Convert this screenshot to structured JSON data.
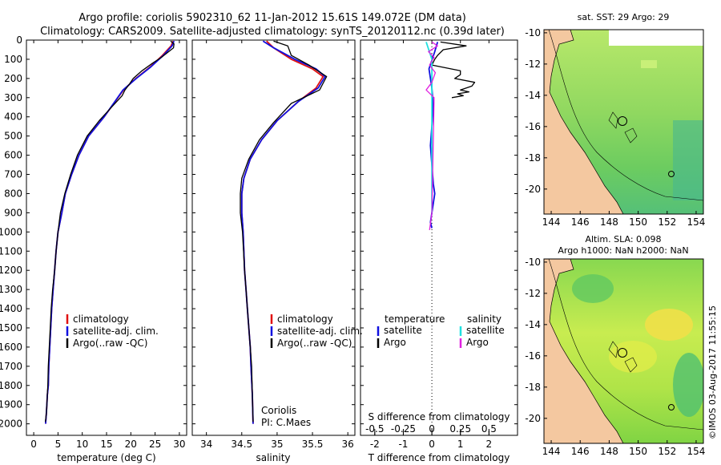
{
  "header": {
    "title_line1": "Argo profile: coriolis 5902310_62 11-Jan-2012 15.61S 149.072E (DM data)",
    "title_line2": "Climatology: CARS2009. Satellite-adjusted climatology: synTS_20120112.nc (0.39d later)"
  },
  "colors": {
    "climatology": "#e01010",
    "satellite": "#1010e0",
    "argo": "#000000",
    "argo_salinity": "#e020e0",
    "satellite_salinity": "#20e0e0",
    "land": "#f4c8a0"
  },
  "legend": {
    "climatology": "climatology",
    "satellite_adj": "satellite-adj. clim.",
    "argo_raw": "Argo(..raw -QC)",
    "temperature": "temperature",
    "salinity": "salinity",
    "satellite": "satellite",
    "argo": "Argo"
  },
  "annotations": {
    "institution": "Coriolis",
    "pi": "PI: C.Maes",
    "watermark": "©IMOS 03-Aug-2017 11:55:15"
  },
  "chart_data": [
    {
      "type": "line",
      "id": "temperature",
      "title": "",
      "xlabel": "temperature (deg C)",
      "ylabel": "",
      "xlim": [
        -1.5,
        31.5
      ],
      "ylim": [
        2060,
        0
      ],
      "xticks": [
        0,
        5,
        10,
        15,
        20,
        25,
        30
      ],
      "yticks": [
        0,
        100,
        200,
        300,
        400,
        500,
        600,
        700,
        800,
        900,
        1000,
        1100,
        1200,
        1300,
        1400,
        1500,
        1600,
        1700,
        1800,
        1900,
        2000
      ],
      "series": [
        {
          "name": "climatology",
          "x": [
            28.7,
            28.3,
            26.5,
            24.0,
            21.0,
            18.5,
            14.5,
            11.3,
            9.3,
            7.8,
            6.5,
            5.8,
            5.0,
            4.6,
            4.3,
            4.0,
            3.7,
            3.5,
            3.3,
            3.1,
            3.0,
            2.8,
            2.7,
            2.6,
            2.45
          ],
          "y": [
            5,
            30,
            80,
            140,
            200,
            260,
            400,
            500,
            600,
            700,
            800,
            900,
            1000,
            1100,
            1200,
            1300,
            1400,
            1500,
            1600,
            1700,
            1800,
            1850,
            1900,
            1950,
            2000
          ]
        },
        {
          "name": "satellite-adj. clim.",
          "x": [
            28.9,
            28.5,
            26.7,
            24.1,
            21.1,
            18.4,
            14.5,
            11.3,
            9.3,
            7.8,
            6.5,
            5.8,
            5.0,
            4.6,
            4.3,
            4.0,
            3.7,
            3.5,
            3.3,
            3.1,
            3.0,
            2.8,
            2.7,
            2.6,
            2.45
          ],
          "y": [
            5,
            30,
            80,
            140,
            200,
            260,
            400,
            500,
            600,
            700,
            800,
            900,
            1000,
            1100,
            1200,
            1300,
            1400,
            1500,
            1600,
            1700,
            1800,
            1850,
            1900,
            1950,
            2000
          ]
        },
        {
          "name": "Argo(..raw -QC)",
          "x": [
            28.2,
            28.9,
            28.8,
            27.8,
            26.3,
            24.5,
            22.3,
            20.5,
            19.7,
            18.8,
            18.2,
            16.0,
            13.5,
            11.0,
            9.0,
            7.6,
            6.4,
            5.5,
            5.0,
            4.6,
            4.3,
            3.9,
            3.6,
            3.4,
            3.2,
            3.0,
            2.9,
            2.7,
            2.6,
            2.4
          ],
          "y": [
            5,
            20,
            40,
            60,
            90,
            120,
            160,
            200,
            230,
            260,
            290,
            350,
            420,
            500,
            600,
            700,
            800,
            900,
            1000,
            1100,
            1200,
            1300,
            1400,
            1500,
            1600,
            1700,
            1800,
            1900,
            1950,
            1990
          ]
        }
      ]
    },
    {
      "type": "line",
      "id": "salinity",
      "title": "",
      "xlabel": "salinity",
      "ylabel": "",
      "xlim": [
        33.8,
        36.1
      ],
      "ylim": [
        2060,
        0
      ],
      "xticks": [
        34,
        34.5,
        35,
        35.5,
        36
      ],
      "series": [
        {
          "name": "climatology",
          "x": [
            34.85,
            34.95,
            35.2,
            35.5,
            35.65,
            35.55,
            35.3,
            35.0,
            34.78,
            34.62,
            34.53,
            34.5,
            34.5,
            34.52,
            34.54,
            34.56,
            34.58,
            34.6,
            34.62,
            34.63,
            34.65,
            34.66
          ],
          "y": [
            5,
            40,
            100,
            150,
            190,
            250,
            320,
            420,
            520,
            620,
            720,
            800,
            900,
            1000,
            1200,
            1300,
            1400,
            1500,
            1600,
            1700,
            1850,
            2000
          ]
        },
        {
          "name": "satellite-adj. clim.",
          "x": [
            34.8,
            34.95,
            35.25,
            35.55,
            35.68,
            35.58,
            35.3,
            35.0,
            34.78,
            34.62,
            34.53,
            34.5,
            34.5,
            34.52,
            34.54,
            34.56,
            34.58,
            34.6,
            34.62,
            34.63,
            34.65,
            34.66
          ],
          "y": [
            5,
            40,
            100,
            150,
            190,
            250,
            320,
            420,
            520,
            620,
            720,
            800,
            900,
            1000,
            1200,
            1300,
            1400,
            1500,
            1600,
            1700,
            1850,
            2000
          ]
        },
        {
          "name": "Argo(..raw -QC)",
          "x": [
            34.95,
            35.15,
            35.2,
            35.45,
            35.7,
            35.6,
            35.2,
            34.95,
            34.75,
            34.6,
            34.5,
            34.48,
            34.48,
            34.51,
            34.54,
            34.56,
            34.58,
            34.6,
            34.62,
            34.64,
            34.65,
            34.66
          ],
          "y": [
            5,
            30,
            80,
            130,
            190,
            260,
            330,
            430,
            520,
            620,
            720,
            800,
            900,
            1000,
            1200,
            1300,
            1400,
            1500,
            1600,
            1700,
            1850,
            1990
          ]
        }
      ]
    },
    {
      "type": "line",
      "id": "difference",
      "title": "",
      "xlabel": "T difference from climatology",
      "xlabel_top": "S difference from climatology",
      "xlim": [
        -2.5,
        3.0
      ],
      "ylim": [
        2060,
        0
      ],
      "xticks": [
        -2,
        -1,
        0,
        1,
        2
      ],
      "xticks_top": [
        -0.5,
        -0.25,
        0,
        0.25,
        0.5
      ],
      "xticks_top_labels": [
        "-0.5",
        "-0.25",
        "0",
        "0.25",
        "0.5"
      ],
      "series": [
        {
          "name": "temperature satellite",
          "x": [
            0.2,
            0.1,
            -0.1,
            0.0,
            0.05,
            0.0,
            -0.05,
            0.0,
            0.05,
            0.1,
            0.05,
            0.0,
            -0.05,
            0.0
          ],
          "y": [
            10,
            60,
            150,
            250,
            350,
            450,
            550,
            650,
            750,
            800,
            850,
            900,
            950,
            980
          ]
        },
        {
          "name": "temperature Argo",
          "x": [
            0.3,
            1.2,
            0.4,
            0.2,
            0.1,
            0.0,
            1.0,
            1.0,
            0.8,
            1.5,
            1.4,
            1.0,
            1.3,
            0.9,
            1.1,
            0.7
          ],
          "y": [
            10,
            30,
            50,
            80,
            100,
            130,
            160,
            180,
            200,
            220,
            240,
            260,
            270,
            280,
            290,
            300
          ]
        },
        {
          "name": "salinity satellite",
          "x": [
            -0.05,
            0.0,
            0.0,
            0.0,
            0.0,
            0.0,
            0.0,
            0.0,
            0.0,
            0.0
          ],
          "y": [
            10,
            100,
            200,
            300,
            400,
            500,
            600,
            700,
            800,
            900
          ]
        },
        {
          "name": "salinity Argo",
          "x": [
            0.0,
            0.05,
            -0.03,
            0.02,
            -0.02,
            0.03,
            0.0,
            -0.05,
            0.02,
            0.0,
            -0.02
          ],
          "y": [
            10,
            30,
            60,
            90,
            130,
            170,
            220,
            260,
            300,
            900,
            990
          ]
        }
      ]
    },
    {
      "type": "heatmap",
      "id": "map_sst",
      "title": "sat. SST: 29 Argo: 29",
      "xticks": [
        144,
        146,
        148,
        150,
        152,
        154
      ],
      "yticks": [
        -10,
        -12,
        -14,
        -16,
        -18,
        -20
      ],
      "xlim": [
        143.5,
        154.5
      ],
      "ylim": [
        -21.6,
        -9.8
      ],
      "argo_position": [
        149.072,
        -15.61
      ]
    },
    {
      "type": "heatmap",
      "id": "map_sla",
      "title": "Altim. SLA: 0.098",
      "subtitle": "Argo h1000: NaN h2000: NaN",
      "xticks": [
        144,
        146,
        148,
        150,
        152,
        154
      ],
      "yticks": [
        -10,
        -12,
        -14,
        -16,
        -18,
        -20
      ],
      "xlim": [
        143.5,
        154.5
      ],
      "ylim": [
        -21.6,
        -9.8
      ],
      "argo_position": [
        149.072,
        -15.61
      ]
    }
  ]
}
